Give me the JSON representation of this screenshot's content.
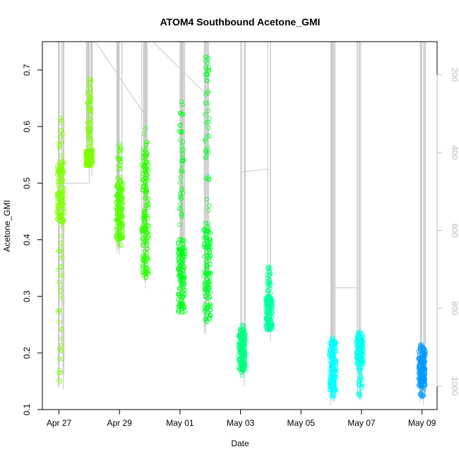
{
  "chart_data": {
    "type": "scatter",
    "title": "ATOM4 Southbound Acetone_GMI",
    "xlabel": "Date",
    "ylabel": "Acetone_GMI",
    "x_ticks": [
      "Apr 27",
      "Apr 29",
      "May 01",
      "May 03",
      "May 05",
      "May 07",
      "May 09"
    ],
    "x_range_days": [
      -0.55,
      12.5
    ],
    "y_range": [
      0.1,
      0.75
    ],
    "y_ticks": [
      "0.1",
      "0.2",
      "0.3",
      "0.4",
      "0.5",
      "0.6",
      "0.7"
    ],
    "right_axis": {
      "label": "",
      "ticks": [
        "200",
        "400",
        "600",
        "800",
        "1000"
      ],
      "range": [
        115,
        1060
      ],
      "color": "#bdbdbd"
    },
    "grid": false,
    "clusters": [
      {
        "day": 0.05,
        "ymin": 0.15,
        "ymax": 0.615,
        "color": "#7fff00",
        "dense": [
          0.43,
          0.54
        ]
      },
      {
        "day": 1.0,
        "ymin": 0.533,
        "ymax": 0.684,
        "color": "#7fff00",
        "dense": [
          0.53,
          0.56
        ]
      },
      {
        "day": 2.0,
        "ymin": 0.39,
        "ymax": 0.57,
        "color": "#55ff00",
        "dense": [
          0.4,
          0.5
        ]
      },
      {
        "day": 2.85,
        "ymin": 0.333,
        "ymax": 0.597,
        "color": "#2aff00",
        "dense": [
          0.34,
          0.56
        ]
      },
      {
        "day": 4.05,
        "ymin": 0.272,
        "ymax": 0.644,
        "color": "#00ff1a",
        "dense": [
          0.27,
          0.4
        ]
      },
      {
        "day": 4.9,
        "ymin": 0.255,
        "ymax": 0.723,
        "color": "#00ff2a",
        "dense": [
          0.26,
          0.42
        ]
      },
      {
        "day": 6.05,
        "ymin": 0.16,
        "ymax": 0.25,
        "color": "#00ff80",
        "dense": [
          0.17,
          0.24
        ]
      },
      {
        "day": 6.95,
        "ymin": 0.243,
        "ymax": 0.352,
        "color": "#00ff9f",
        "dense": [
          0.24,
          0.3
        ]
      },
      {
        "day": 9.05,
        "ymin": 0.12,
        "ymax": 0.227,
        "color": "#00ffff",
        "dense": [
          0.13,
          0.22
        ]
      },
      {
        "day": 9.95,
        "ymin": 0.122,
        "ymax": 0.238,
        "color": "#00ffee",
        "dense": [
          0.18,
          0.23
        ]
      },
      {
        "day": 12.0,
        "ymin": 0.122,
        "ymax": 0.215,
        "color": "#0099ff",
        "dense": [
          0.14,
          0.21
        ]
      }
    ],
    "altitude_trace_color": "#c8c8c8"
  }
}
